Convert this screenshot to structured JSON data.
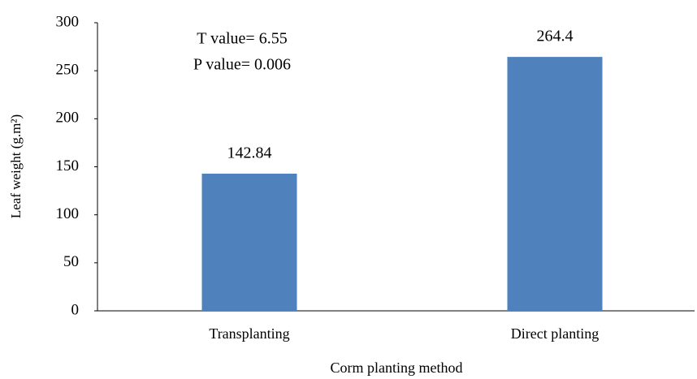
{
  "chart_data": {
    "type": "bar",
    "x_label": "Corm planting method",
    "y_label": "Leaf weight (g.m²)",
    "annotations": [
      "T value= 6.55",
      "P value= 0.006"
    ],
    "categories": [
      "Transplanting",
      "Direct planting"
    ],
    "values": [
      142.84,
      264.4
    ],
    "color": "#4f81bd",
    "ylim": [
      0,
      300
    ],
    "yticks": [
      0,
      50,
      100,
      150,
      200,
      250,
      300
    ],
    "grid": false
  }
}
